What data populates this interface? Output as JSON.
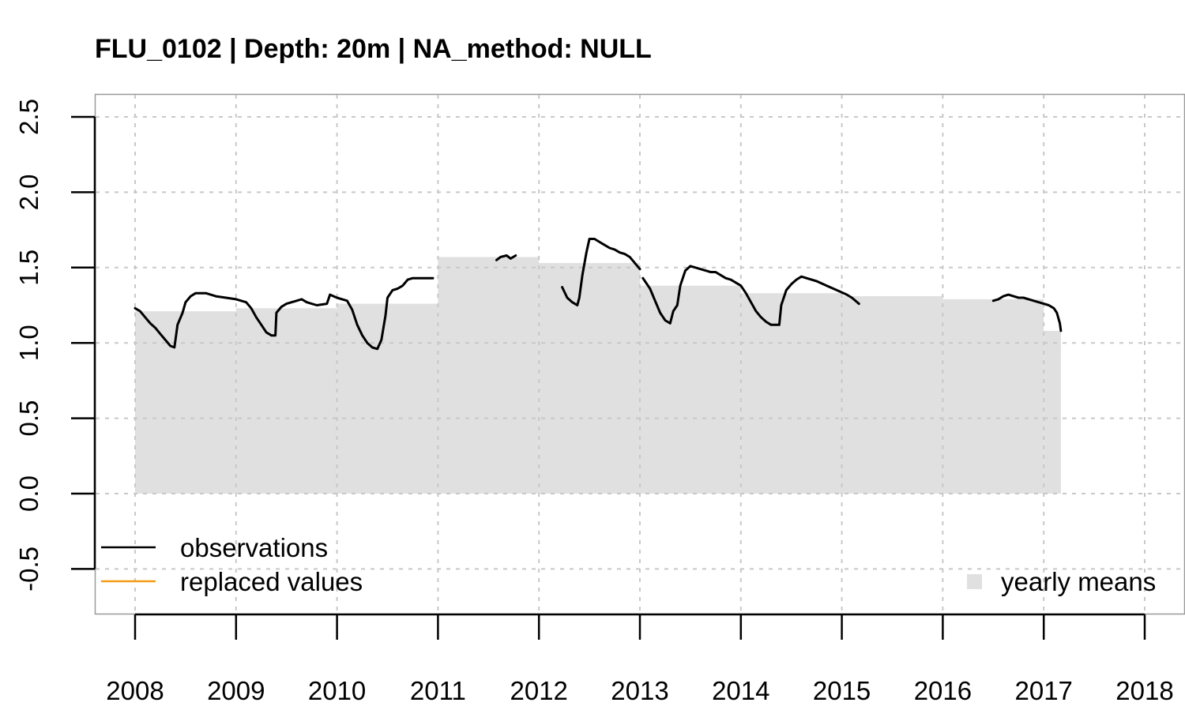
{
  "chart_data": {
    "type": "line",
    "title": "FLU_0102 | Depth: 20m | NA_method: NULL",
    "xlabel": "",
    "ylabel": "",
    "xlim": [
      2008,
      2018
    ],
    "ylim": [
      -0.5,
      2.5
    ],
    "x_ticks": [
      2008,
      2009,
      2010,
      2011,
      2012,
      2013,
      2014,
      2015,
      2016,
      2017,
      2018
    ],
    "x_tick_labels": [
      "2008",
      "2009",
      "2010",
      "2011",
      "2012",
      "2013",
      "2014",
      "2015",
      "2016",
      "2017",
      "2018"
    ],
    "y_ticks": [
      -0.5,
      0,
      0.5,
      1,
      1.5,
      2,
      2.5
    ],
    "y_tick_labels": [
      "-0.5",
      "0.0",
      "0.5",
      "1.0",
      "1.5",
      "2.0",
      "2.5"
    ],
    "grid": true,
    "legend": {
      "observations_label": "observations",
      "replaced_label": "replaced values",
      "yearly_label": "yearly means",
      "placement": "bottom"
    },
    "colors": {
      "observations": "#000000",
      "replaced": "#f39c12",
      "yearly": "#e0e0e0",
      "grid": "#c8c8c8"
    },
    "yearly_means": [
      {
        "start": 2008.0,
        "end": 2009.0,
        "value": 1.21
      },
      {
        "start": 2009.0,
        "end": 2010.0,
        "value": 1.23
      },
      {
        "start": 2010.0,
        "end": 2011.0,
        "value": 1.26
      },
      {
        "start": 2011.0,
        "end": 2012.0,
        "value": 1.57
      },
      {
        "start": 2012.0,
        "end": 2013.0,
        "value": 1.53
      },
      {
        "start": 2013.0,
        "end": 2014.0,
        "value": 1.38
      },
      {
        "start": 2014.0,
        "end": 2015.0,
        "value": 1.33
      },
      {
        "start": 2015.0,
        "end": 2016.0,
        "value": 1.31
      },
      {
        "start": 2016.0,
        "end": 2017.0,
        "value": 1.29
      },
      {
        "start": 2017.0,
        "end": 2017.17,
        "value": 1.08
      }
    ],
    "series": [
      {
        "segments": [
          [
            [
              2008.0,
              1.23
            ],
            [
              2008.05,
              1.21
            ],
            [
              2008.1,
              1.17
            ],
            [
              2008.15,
              1.13
            ],
            [
              2008.2,
              1.1
            ],
            [
              2008.25,
              1.06
            ],
            [
              2008.3,
              1.02
            ],
            [
              2008.35,
              0.98
            ],
            [
              2008.39,
              0.97
            ],
            [
              2008.42,
              1.12
            ],
            [
              2008.47,
              1.2
            ],
            [
              2008.5,
              1.27
            ],
            [
              2008.55,
              1.31
            ],
            [
              2008.6,
              1.33
            ],
            [
              2008.7,
              1.33
            ],
            [
              2008.8,
              1.31
            ],
            [
              2008.9,
              1.3
            ],
            [
              2009.0,
              1.29
            ],
            [
              2009.05,
              1.28
            ],
            [
              2009.1,
              1.27
            ],
            [
              2009.15,
              1.23
            ],
            [
              2009.2,
              1.17
            ],
            [
              2009.25,
              1.12
            ],
            [
              2009.3,
              1.07
            ],
            [
              2009.35,
              1.05
            ],
            [
              2009.39,
              1.05
            ],
            [
              2009.4,
              1.2
            ],
            [
              2009.45,
              1.24
            ],
            [
              2009.5,
              1.26
            ],
            [
              2009.6,
              1.28
            ],
            [
              2009.65,
              1.29
            ],
            [
              2009.7,
              1.27
            ],
            [
              2009.8,
              1.25
            ],
            [
              2009.9,
              1.26
            ],
            [
              2009.93,
              1.32
            ],
            [
              2010.0,
              1.3
            ],
            [
              2010.1,
              1.28
            ],
            [
              2010.15,
              1.22
            ],
            [
              2010.2,
              1.12
            ],
            [
              2010.25,
              1.05
            ],
            [
              2010.3,
              1.0
            ],
            [
              2010.35,
              0.97
            ],
            [
              2010.4,
              0.96
            ],
            [
              2010.44,
              1.02
            ],
            [
              2010.48,
              1.18
            ],
            [
              2010.5,
              1.3
            ],
            [
              2010.55,
              1.35
            ],
            [
              2010.6,
              1.36
            ],
            [
              2010.65,
              1.38
            ],
            [
              2010.7,
              1.42
            ],
            [
              2010.75,
              1.43
            ],
            [
              2010.85,
              1.43
            ],
            [
              2010.95,
              1.43
            ]
          ],
          [
            [
              2011.58,
              1.55
            ],
            [
              2011.62,
              1.57
            ],
            [
              2011.68,
              1.58
            ],
            [
              2011.72,
              1.56
            ],
            [
              2011.77,
              1.58
            ]
          ],
          [
            [
              2012.23,
              1.37
            ],
            [
              2012.28,
              1.3
            ],
            [
              2012.33,
              1.27
            ],
            [
              2012.38,
              1.25
            ],
            [
              2012.4,
              1.3
            ],
            [
              2012.43,
              1.45
            ],
            [
              2012.47,
              1.6
            ],
            [
              2012.5,
              1.69
            ],
            [
              2012.55,
              1.69
            ],
            [
              2012.6,
              1.67
            ],
            [
              2012.65,
              1.65
            ],
            [
              2012.7,
              1.63
            ],
            [
              2012.75,
              1.62
            ],
            [
              2012.8,
              1.6
            ],
            [
              2012.85,
              1.59
            ],
            [
              2012.9,
              1.57
            ],
            [
              2012.95,
              1.53
            ],
            [
              2013.0,
              1.49
            ]
          ],
          [
            [
              2013.03,
              1.43
            ],
            [
              2013.1,
              1.36
            ],
            [
              2013.15,
              1.28
            ],
            [
              2013.2,
              1.2
            ],
            [
              2013.25,
              1.15
            ],
            [
              2013.3,
              1.13
            ],
            [
              2013.33,
              1.21
            ],
            [
              2013.37,
              1.25
            ],
            [
              2013.4,
              1.38
            ],
            [
              2013.45,
              1.48
            ],
            [
              2013.5,
              1.51
            ],
            [
              2013.55,
              1.5
            ],
            [
              2013.6,
              1.49
            ],
            [
              2013.65,
              1.48
            ],
            [
              2013.7,
              1.47
            ],
            [
              2013.75,
              1.47
            ],
            [
              2013.8,
              1.45
            ],
            [
              2013.85,
              1.43
            ],
            [
              2013.9,
              1.42
            ],
            [
              2014.0,
              1.38
            ],
            [
              2014.05,
              1.33
            ],
            [
              2014.1,
              1.27
            ],
            [
              2014.15,
              1.21
            ],
            [
              2014.2,
              1.17
            ],
            [
              2014.25,
              1.14
            ],
            [
              2014.3,
              1.12
            ],
            [
              2014.38,
              1.12
            ],
            [
              2014.4,
              1.25
            ],
            [
              2014.45,
              1.35
            ],
            [
              2014.5,
              1.39
            ],
            [
              2014.55,
              1.42
            ],
            [
              2014.6,
              1.44
            ],
            [
              2014.65,
              1.43
            ],
            [
              2014.75,
              1.41
            ],
            [
              2014.85,
              1.38
            ],
            [
              2014.95,
              1.35
            ],
            [
              2015.05,
              1.32
            ],
            [
              2015.1,
              1.3
            ],
            [
              2015.17,
              1.26
            ]
          ],
          [
            [
              2016.5,
              1.28
            ],
            [
              2016.55,
              1.29
            ],
            [
              2016.6,
              1.31
            ],
            [
              2016.65,
              1.32
            ],
            [
              2016.7,
              1.31
            ],
            [
              2016.75,
              1.3
            ],
            [
              2016.8,
              1.3
            ],
            [
              2016.9,
              1.28
            ],
            [
              2017.0,
              1.26
            ],
            [
              2017.05,
              1.25
            ],
            [
              2017.1,
              1.23
            ],
            [
              2017.13,
              1.2
            ],
            [
              2017.16,
              1.13
            ],
            [
              2017.17,
              1.08
            ]
          ]
        ]
      }
    ]
  }
}
